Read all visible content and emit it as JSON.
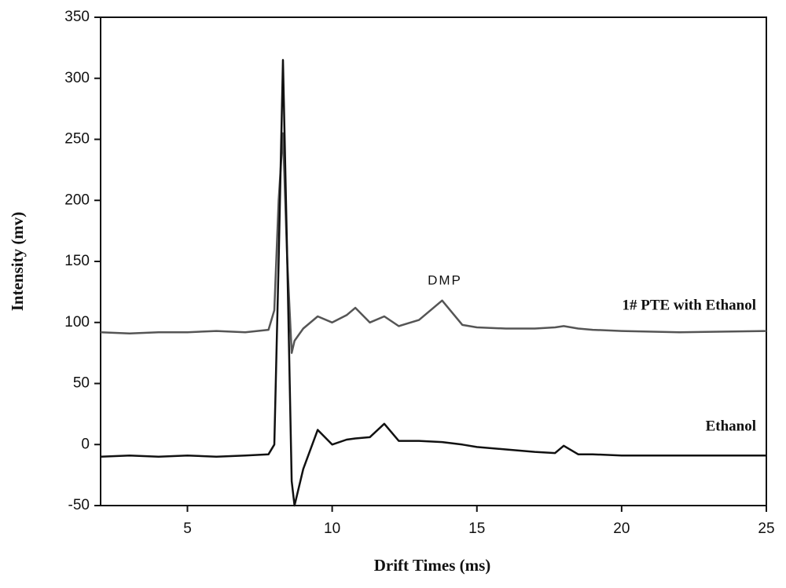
{
  "chart_data": {
    "type": "line",
    "xlabel": "Drift Times (ms)",
    "ylabel": "Intensity (mv)",
    "annotation": "DMP",
    "x": [
      2,
      3,
      4,
      5,
      6,
      7,
      7.8,
      8.0,
      8.15,
      8.3,
      8.45,
      8.6,
      8.7,
      9,
      9.5,
      10,
      10.5,
      10.8,
      11.3,
      11.8,
      12.3,
      13,
      13.8,
      14.5,
      15,
      16,
      17,
      17.7,
      18,
      18.5,
      19,
      20,
      22,
      25
    ],
    "series": [
      {
        "name": "1# PTE with Ethanol",
        "color": "#555555",
        "values": [
          92,
          91,
          92,
          92,
          93,
          92,
          94,
          110,
          200,
          255,
          150,
          75,
          85,
          95,
          105,
          100,
          106,
          112,
          100,
          105,
          97,
          102,
          118,
          98,
          96,
          95,
          95,
          96,
          97,
          95,
          94,
          93,
          92,
          93
        ]
      },
      {
        "name": "Ethanol",
        "color": "#111111",
        "values": [
          -10,
          -9,
          -10,
          -9,
          -10,
          -9,
          -8,
          0,
          150,
          315,
          150,
          -30,
          -50,
          -20,
          12,
          0,
          4,
          5,
          6,
          17,
          3,
          3,
          2,
          0,
          -2,
          -4,
          -6,
          -7,
          -1,
          -8,
          -8,
          -9,
          -9,
          -9
        ]
      }
    ],
    "xlim": [
      2,
      25
    ],
    "xticks": [
      5,
      10,
      15,
      20,
      25
    ],
    "ylim": [
      -50,
      350
    ],
    "yticks": [
      -50,
      0,
      50,
      100,
      150,
      200,
      250,
      300,
      350
    ]
  }
}
